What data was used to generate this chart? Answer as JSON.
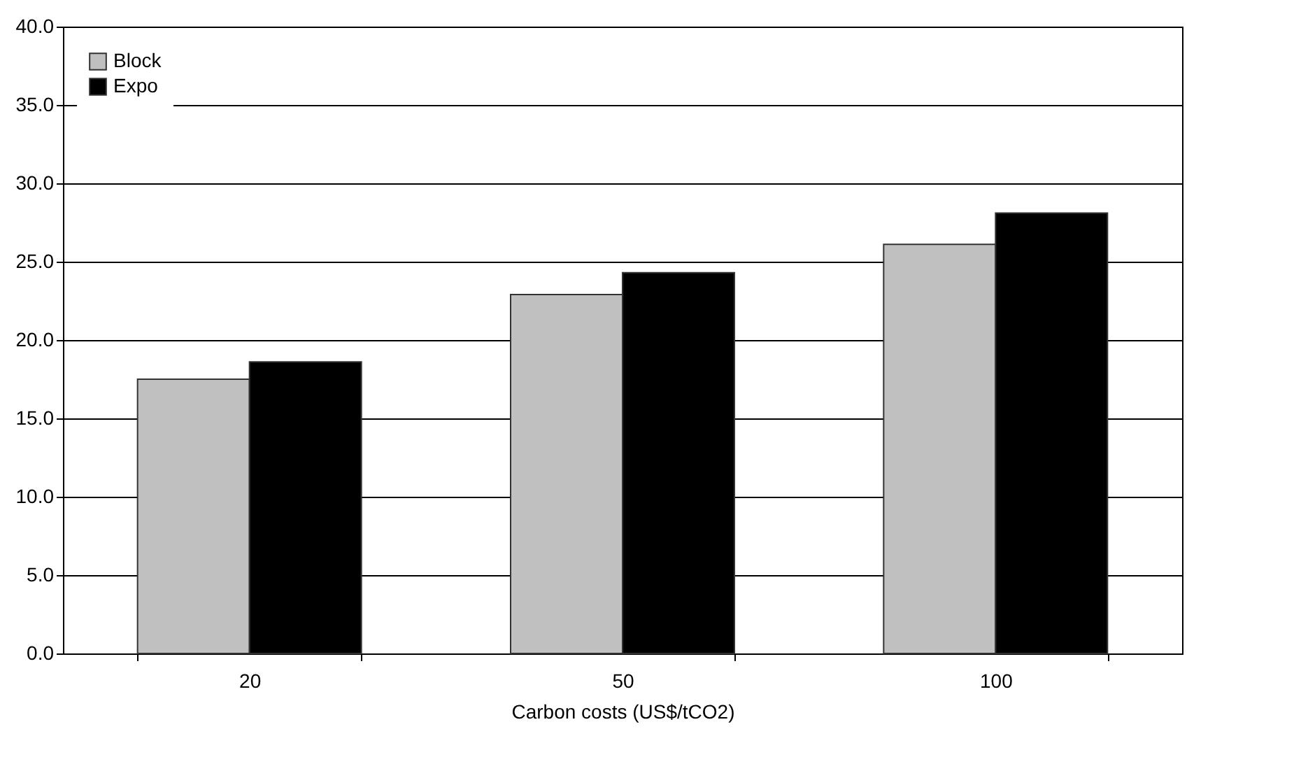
{
  "chart_data": {
    "type": "bar",
    "xlabel": "Carbon costs (US$/tCO2)",
    "categories": [
      "20",
      "50",
      "100"
    ],
    "series": [
      {
        "name": "Block",
        "color": "#c0c0c0",
        "values": [
          17.5,
          22.9,
          26.1
        ]
      },
      {
        "name": "Expo",
        "color": "#000000",
        "values": [
          18.6,
          24.3,
          28.1
        ]
      }
    ],
    "ylim": [
      0,
      40
    ],
    "yticks": [
      {
        "value": 0,
        "label": "0.0"
      },
      {
        "value": 5,
        "label": "5.0"
      },
      {
        "value": 10,
        "label": "10.0"
      },
      {
        "value": 15,
        "label": "15.0"
      },
      {
        "value": 20,
        "label": "20.0"
      },
      {
        "value": 25,
        "label": "25.0"
      },
      {
        "value": 30,
        "label": "30.0"
      },
      {
        "value": 35,
        "label": "35.0"
      },
      {
        "value": 40,
        "label": "40.0"
      }
    ],
    "grid": "y",
    "legend": "top left"
  }
}
